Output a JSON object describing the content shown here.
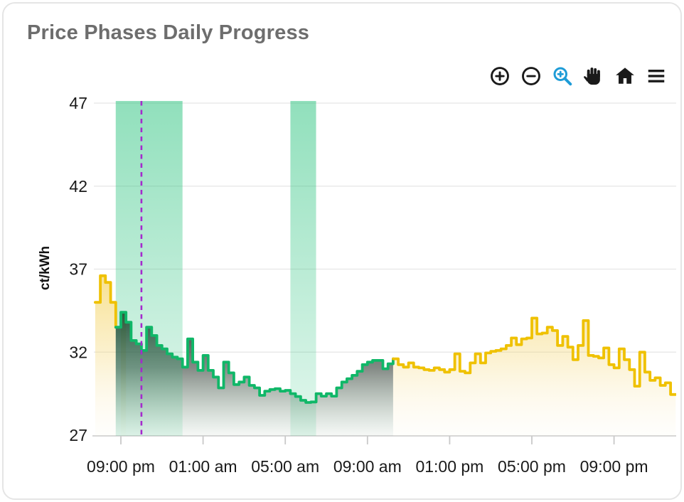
{
  "header": {
    "title": "Price Phases Daily Progress"
  },
  "toolbar": {
    "icon_color": "#1a1a1a",
    "active_color": "#1E9CD7",
    "buttons": [
      {
        "name": "zoom-in",
        "label": "Zoom In",
        "active": false
      },
      {
        "name": "zoom-out",
        "label": "Zoom Out",
        "active": false
      },
      {
        "name": "selection-zoom",
        "label": "Selection Zoom",
        "active": true
      },
      {
        "name": "pan",
        "label": "Panning",
        "active": false
      },
      {
        "name": "home",
        "label": "Reset Zoom",
        "active": false
      },
      {
        "name": "menu",
        "label": "Menu",
        "active": false
      }
    ]
  },
  "chart_data": {
    "type": "area",
    "subtype": "stepped-price-phases",
    "title": "Price Phases Daily Progress",
    "xlabel": "",
    "ylabel": "ct/kWh",
    "ylim": [
      27,
      47
    ],
    "y_ticks": [
      47,
      42,
      37,
      32,
      27
    ],
    "x_tick_hours": [
      21,
      25,
      29,
      33,
      37,
      41,
      45
    ],
    "x_tick_labels": [
      "09:00 pm",
      "01:00 am",
      "05:00 am",
      "09:00 am",
      "01:00 pm",
      "05:00 pm",
      "09:00 pm"
    ],
    "step_hours": 0.25,
    "grid": "horizontal",
    "legend_position": "none",
    "series": [
      {
        "name": "expensive-evening",
        "phase": "expensive",
        "color": "#EFC100",
        "start_hour": 19.75,
        "values": [
          35.0,
          36.6,
          36.2,
          35.0
        ]
      },
      {
        "name": "cheap-night-morning",
        "phase": "cheap",
        "color": "#10B768",
        "start_hour": 20.75,
        "values": [
          33.5,
          34.4,
          33.8,
          32.7,
          32.5,
          32.1,
          33.5,
          33.0,
          32.4,
          32.2,
          31.9,
          31.7,
          31.6,
          31.1,
          32.8,
          31.4,
          30.9,
          31.8,
          30.9,
          30.5,
          29.85,
          31.4,
          30.75,
          30.05,
          30.2,
          30.5,
          30.0,
          29.85,
          29.4,
          29.65,
          29.75,
          29.8,
          29.65,
          29.7,
          29.5,
          29.33,
          29.1,
          28.97,
          29.0,
          29.5,
          29.35,
          29.5,
          29.35,
          29.85,
          30.2,
          30.4,
          30.6,
          30.85,
          31.25,
          31.4,
          31.5,
          31.5,
          31.0,
          31.3
        ]
      },
      {
        "name": "expensive-day",
        "phase": "expensive",
        "color": "#EFC100",
        "start_hour": 34.25,
        "values": [
          31.6,
          31.25,
          31.1,
          31.35,
          31.1,
          31.05,
          30.95,
          30.9,
          31.05,
          30.95,
          30.8,
          30.95,
          31.9,
          30.85,
          30.75,
          31.35,
          31.9,
          31.35,
          31.95,
          32.05,
          32.1,
          32.2,
          32.4,
          32.85,
          32.45,
          32.8,
          32.85,
          34.05,
          33.1,
          33.15,
          33.5,
          33.3,
          32.4,
          32.95,
          32.3,
          31.55,
          32.4,
          33.9,
          31.8,
          31.75,
          31.65,
          32.25,
          31.25,
          31.05,
          32.2,
          31.55,
          30.95,
          29.95,
          32.0,
          30.8,
          30.3,
          30.45,
          30.0,
          30.15,
          29.45
        ]
      }
    ],
    "overlap_step": {
      "start_hour": 21.0,
      "end_hour": 21.25,
      "value": 34.4,
      "phase": "expensive"
    },
    "highlight_bands": {
      "meaning": "cheap-price-windows",
      "color": "#12B76A",
      "ranges": [
        {
          "start_hour": 20.75,
          "end_hour": 24.0
        },
        {
          "start_hour": 29.25,
          "end_hour": 30.5
        }
      ]
    },
    "current_time_line": {
      "hour": 22.0,
      "color": "#A42ACD",
      "style": "dashed"
    }
  }
}
